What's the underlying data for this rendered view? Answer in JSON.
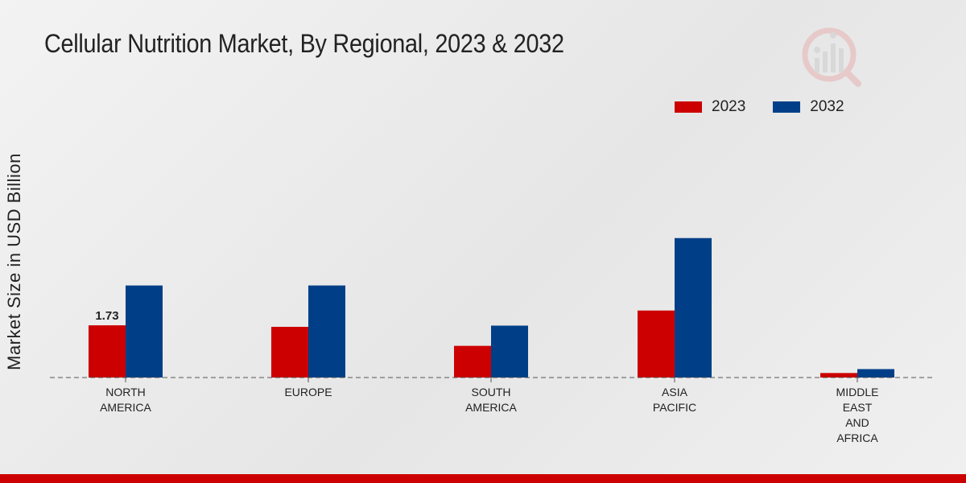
{
  "chart_data": {
    "type": "bar",
    "title": "Cellular Nutrition Market, By Regional, 2023 & 2032",
    "xlabel": "",
    "ylabel": "Market Size in USD Billion",
    "categories": [
      [
        "NORTH",
        "AMERICA"
      ],
      [
        "EUROPE"
      ],
      [
        "SOUTH",
        "AMERICA"
      ],
      [
        "ASIA",
        "PACIFIC"
      ],
      [
        "MIDDLE",
        "EAST",
        "AND",
        "AFRICA"
      ]
    ],
    "series": [
      {
        "name": "2023",
        "color": "#cc0000",
        "values": [
          1.73,
          1.68,
          1.05,
          2.22,
          0.15
        ]
      },
      {
        "name": "2032",
        "color": "#003f87",
        "values": [
          3.05,
          3.05,
          1.72,
          4.62,
          0.28
        ]
      }
    ],
    "data_labels": [
      {
        "series": 0,
        "index": 0,
        "text": "1.73"
      }
    ],
    "ylim": [
      0,
      8
    ],
    "grid": false,
    "legend_position": "top-right"
  }
}
